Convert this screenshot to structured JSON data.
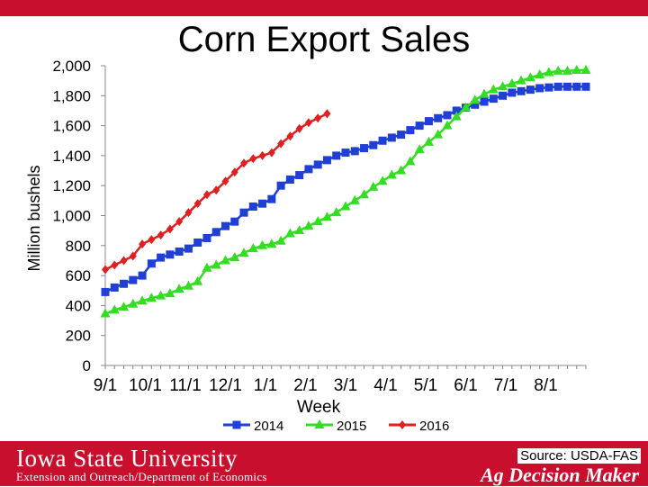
{
  "chart_data": {
    "type": "line",
    "title": "Corn Export Sales",
    "xlabel": "Week",
    "ylabel": "Million bushels",
    "ylim": [
      0,
      2000
    ],
    "yticks": [
      "0",
      "200",
      "400",
      "600",
      "800",
      "1,000",
      "1,200",
      "1,400",
      "1,600",
      "1,800",
      "2,000"
    ],
    "xticks": [
      "9/1",
      "10/1",
      "11/1",
      "12/1",
      "1/1",
      "2/1",
      "3/1",
      "4/1",
      "5/1",
      "6/1",
      "7/1",
      "8/1"
    ],
    "weeks_total": 52,
    "legend_position": "bottom",
    "series": [
      {
        "name": "2014",
        "color": "#1f3fd6",
        "marker": "square",
        "values": [
          490,
          520,
          545,
          570,
          600,
          680,
          720,
          740,
          760,
          780,
          820,
          850,
          890,
          930,
          960,
          1020,
          1060,
          1080,
          1110,
          1200,
          1240,
          1270,
          1310,
          1340,
          1370,
          1400,
          1420,
          1430,
          1450,
          1470,
          1500,
          1520,
          1540,
          1570,
          1600,
          1630,
          1650,
          1670,
          1700,
          1720,
          1740,
          1760,
          1780,
          1800,
          1820,
          1830,
          1840,
          1850,
          1855,
          1860,
          1860,
          1860,
          1860
        ]
      },
      {
        "name": "2015",
        "color": "#33dd22",
        "marker": "triangle",
        "values": [
          345,
          370,
          390,
          410,
          430,
          450,
          465,
          480,
          510,
          530,
          560,
          650,
          670,
          700,
          720,
          750,
          780,
          800,
          810,
          830,
          880,
          900,
          930,
          960,
          990,
          1020,
          1060,
          1100,
          1140,
          1190,
          1230,
          1270,
          1300,
          1360,
          1440,
          1490,
          1540,
          1600,
          1660,
          1720,
          1770,
          1810,
          1840,
          1860,
          1880,
          1900,
          1920,
          1940,
          1955,
          1965,
          1965,
          1970,
          1970
        ]
      },
      {
        "name": "2016",
        "color": "#e02020",
        "marker": "diamond",
        "values": [
          640,
          670,
          700,
          730,
          810,
          840,
          870,
          910,
          960,
          1020,
          1080,
          1140,
          1170,
          1230,
          1290,
          1350,
          1380,
          1400,
          1420,
          1480,
          1530,
          1580,
          1620,
          1650,
          1680
        ]
      }
    ],
    "legend": [
      "2014",
      "2015",
      "2016"
    ]
  },
  "footer": {
    "university": "Iowa State University",
    "extension": "Extension and Outreach/Department of Economics",
    "source": "Source: USDA-FAS",
    "brand": "Ag Decision Maker"
  }
}
